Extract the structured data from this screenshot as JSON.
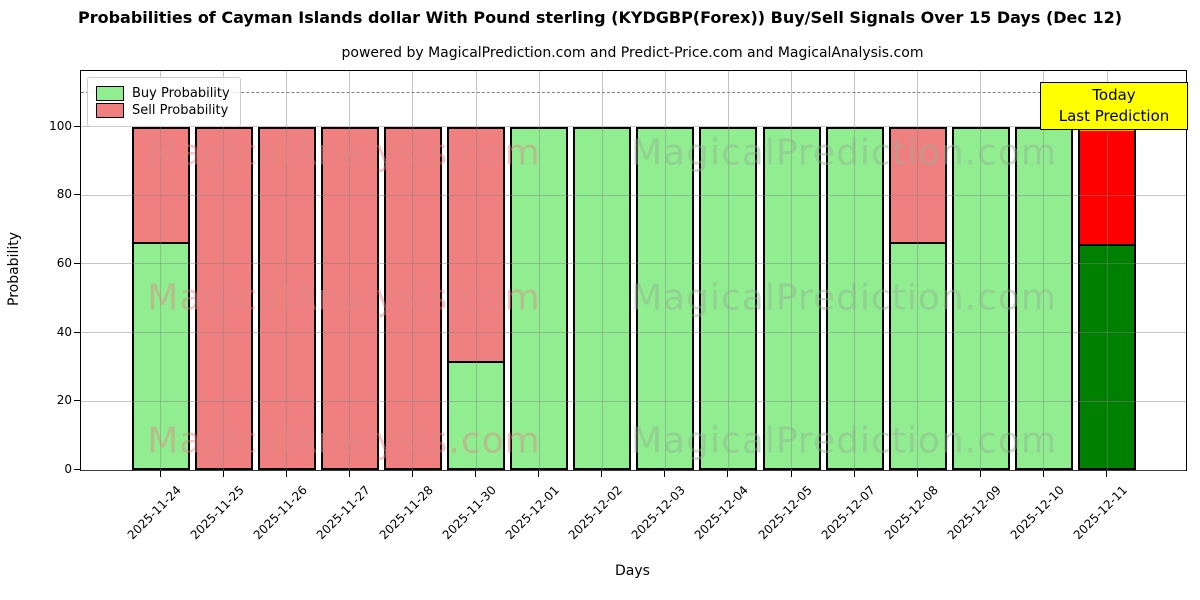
{
  "title": "Probabilities of Cayman Islands dollar With Pound sterling (KYDGBP(Forex)) Buy/Sell Signals Over 15 Days (Dec 12)",
  "subtitle": "powered by MagicalPrediction.com and Predict-Price.com and MagicalAnalysis.com",
  "legend": {
    "items": [
      {
        "label": "Buy Probability",
        "color": "#90EE90"
      },
      {
        "label": "Sell Probability",
        "color": "#F08080"
      }
    ]
  },
  "annotation": {
    "line1": "Today",
    "line2": "Last Prediction",
    "bg_color": "#FFFF00"
  },
  "axes": {
    "xlabel": "Days",
    "ylabel": "Probability",
    "yticks": [
      0,
      20,
      40,
      60,
      80,
      100
    ]
  },
  "watermarks": {
    "left_text": "MagicalAnalysis.com",
    "right_text": "MagicalPrediction.com",
    "left_color": "#e08888",
    "right_color": "#96af96",
    "opacity": 0.45
  },
  "colors": {
    "buy": "#90EE90",
    "sell": "#F08080",
    "today_buy": "#008000",
    "today_sell": "#FF0000",
    "today_edge": "#FFA500",
    "bar_edge": "#000000",
    "grid": "#808080",
    "dashed_line": "#808080"
  },
  "chart_data": {
    "type": "bar",
    "stacked": true,
    "title": "Probabilities of Cayman Islands dollar With Pound sterling (KYDGBP(Forex)) Buy/Sell Signals Over 15 Days (Dec 12)",
    "xlabel": "Days",
    "ylabel": "Probability",
    "ylim": [
      0,
      116
    ],
    "dashed_guide_y": 110,
    "grid": true,
    "legend_position": "upper-left",
    "categories": [
      "2025-11-24",
      "2025-11-25",
      "2025-11-26",
      "2025-11-27",
      "2025-11-28",
      "2025-11-30",
      "2025-12-01",
      "2025-12-02",
      "2025-12-03",
      "2025-12-04",
      "2025-12-05",
      "2025-12-07",
      "2025-12-08",
      "2025-12-09",
      "2025-12-10",
      "2025-12-11"
    ],
    "series": [
      {
        "name": "Buy Probability",
        "values": [
          66,
          0,
          0,
          0,
          0,
          31,
          100,
          100,
          100,
          100,
          100,
          100,
          66,
          100,
          100,
          66
        ]
      },
      {
        "name": "Sell Probability",
        "values": [
          34,
          100,
          100,
          100,
          100,
          69,
          0,
          0,
          0,
          0,
          0,
          0,
          34,
          0,
          0,
          34
        ]
      }
    ],
    "today_index": 15,
    "today_note": "Last bar (2025-12-11) drawn with dark green / bright red and orange top edge, labeled Today / Last Prediction"
  }
}
